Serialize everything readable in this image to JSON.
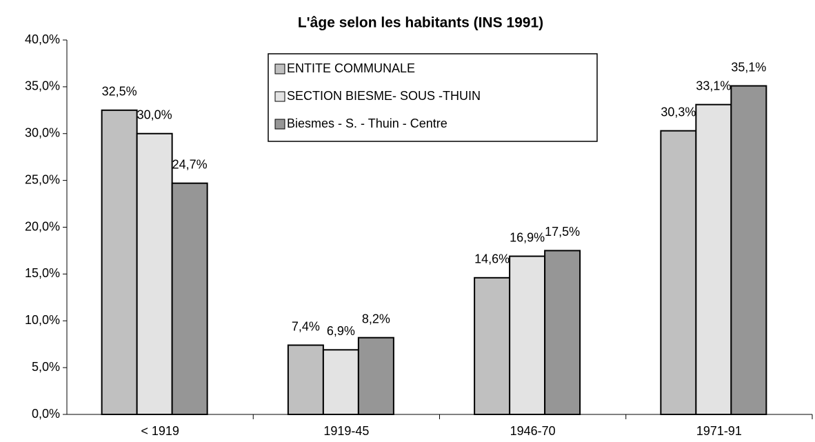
{
  "chart_data": {
    "type": "bar",
    "title": "L'âge selon les habitants (INS 1991)",
    "categories": [
      "< 1919",
      "1919-45",
      "1946-70",
      "1971-91"
    ],
    "series": [
      {
        "name": "ENTITE COMMUNALE",
        "color": "#c0c0c0",
        "values": [
          32.5,
          7.4,
          14.6,
          30.3
        ],
        "value_labels": [
          "32,5%",
          "7,4%",
          "14,6%",
          "30,3%"
        ]
      },
      {
        "name": "SECTION BIESME- SOUS -THUIN",
        "color": "#e3e3e3",
        "values": [
          30.0,
          6.9,
          16.9,
          33.1
        ],
        "value_labels": [
          "30,0%",
          "6,9%",
          "16,9%",
          "33,1%"
        ]
      },
      {
        "name": "Biesmes - S. - Thuin - Centre",
        "color": "#969696",
        "values": [
          24.7,
          8.2,
          17.5,
          35.1
        ],
        "value_labels": [
          "24,7%",
          "8,2%",
          "17,5%",
          "35,1%"
        ]
      }
    ],
    "ylim": [
      0,
      40
    ],
    "yticks": [
      {
        "value": 0,
        "label": "0,0%"
      },
      {
        "value": 5,
        "label": "5,0%"
      },
      {
        "value": 10,
        "label": "10,0%"
      },
      {
        "value": 15,
        "label": "15,0%"
      },
      {
        "value": 20,
        "label": "20,0%"
      },
      {
        "value": 25,
        "label": "25,0%"
      },
      {
        "value": 30,
        "label": "30,0%"
      },
      {
        "value": 35,
        "label": "35,0%"
      },
      {
        "value": 40,
        "label": "40,0%"
      }
    ],
    "grid": false
  }
}
